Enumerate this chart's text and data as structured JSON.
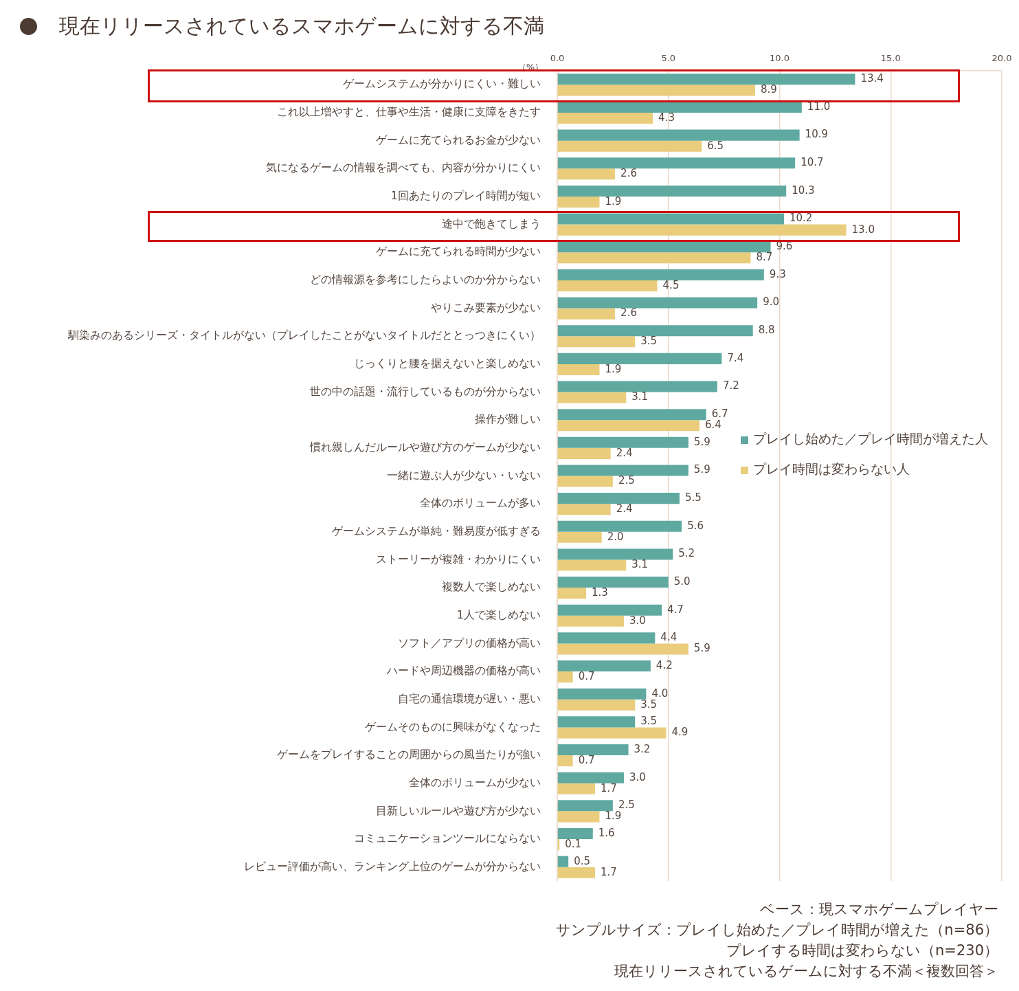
{
  "chart_data": {
    "type": "bar",
    "orientation": "horizontal",
    "title": "現在リリースされているスマホゲームに対する不満",
    "xlabel": "（%）",
    "categories": [
      "ゲームシステムが分かりにくい・難しい",
      "これ以上増やすと、仕事や生活・健康に支障をきたす",
      "ゲームに充てられるお金が少ない",
      "気になるゲームの情報を調べても、内容が分かりにくい",
      "1回あたりのプレイ時間が短い",
      "途中で飽きてしまう",
      "ゲームに充てられる時間が少ない",
      "どの情報源を参考にしたらよいのか分からない",
      "やりこみ要素が少ない",
      "馴染みのあるシリーズ・タイトルがない（プレイしたことがないタイトルだととっつきにくい）",
      "じっくりと腰を据えないと楽しめない",
      "世の中の話題・流行しているものが分からない",
      "操作が難しい",
      "慣れ親しんだルールや遊び方のゲームが少ない",
      "一緒に遊ぶ人が少ない・いない",
      "全体のボリュームが多い",
      "ゲームシステムが単純・難易度が低すぎる",
      "ストーリーが複雑・わかりにくい",
      "複数人で楽しめない",
      "1人で楽しめない",
      "ソフト／アプリの価格が高い",
      "ハードや周辺機器の価格が高い",
      "自宅の通信環境が遅い・悪い",
      "ゲームそのものに興味がなくなった",
      "ゲームをプレイすることの周囲からの風当たりが強い",
      "全体のボリュームが少ない",
      "目新しいルールや遊び方が少ない",
      "コミュニケーションツールにならない",
      "レビュー評価が高い、ランキング上位のゲームが分からない"
    ],
    "series": [
      {
        "name": "プレイし始めた／プレイ時間が増えた人",
        "color": "#5fa9a0",
        "values": [
          13.4,
          11.0,
          10.9,
          10.7,
          10.3,
          10.2,
          9.6,
          9.3,
          9.0,
          8.8,
          7.4,
          7.2,
          6.7,
          5.9,
          5.9,
          5.5,
          5.6,
          5.2,
          5.0,
          4.7,
          4.4,
          4.2,
          4.0,
          3.5,
          3.2,
          3.0,
          2.5,
          1.6,
          0.5
        ],
        "value_labels": [
          "13.4",
          "11.0",
          "10.9",
          "10.7",
          "10.3",
          "10.2",
          "9.6",
          "9.3",
          "9.0",
          "8.8",
          "7.4",
          "7.2",
          "6.7",
          "5.9",
          "5.9",
          "5.5",
          "5.6",
          "5.2",
          "5.0",
          "4.7",
          "4.4",
          "4.2",
          "4.0",
          "3.5",
          "3.2",
          "3.0",
          "2.5",
          "1.6",
          "0.5"
        ]
      },
      {
        "name": "プレイ時間は変わらない人",
        "color": "#e9cd7c",
        "values": [
          8.9,
          4.3,
          6.5,
          2.6,
          1.9,
          13.0,
          8.7,
          4.5,
          2.6,
          3.5,
          1.9,
          3.1,
          6.4,
          2.4,
          2.5,
          2.4,
          2.0,
          3.1,
          1.3,
          3.0,
          5.9,
          0.7,
          3.5,
          4.9,
          0.7,
          1.7,
          1.9,
          0.1,
          1.7
        ],
        "value_labels": [
          "8.9",
          "4.3",
          "6.5",
          "2.6",
          "1.9",
          "13.0",
          "8.7",
          "4.5",
          "2.6",
          "3.5",
          "1.9",
          "3.1",
          "6.4",
          "2.4",
          "2.5",
          "2.4",
          "2.0",
          "3.1",
          "1.3",
          "3.0",
          "5.9",
          "0.7",
          "3.5",
          "4.9",
          "0.7",
          "1.7",
          "1.9",
          "0.1",
          "1.7"
        ]
      }
    ],
    "xlim": [
      0,
      20
    ],
    "xticks": [
      {
        "value": 0,
        "label": "0.0"
      },
      {
        "value": 5,
        "label": "5.0"
      },
      {
        "value": 10,
        "label": "10.0"
      },
      {
        "value": 15,
        "label": "15.0"
      },
      {
        "value": 20,
        "label": "20.0"
      }
    ],
    "grid": "x",
    "legend": "right",
    "annotations": [
      "ベース：現スマホゲームプレイヤー",
      "サンプルサイズ：プレイし始めた／プレイ時間が増えた（n=86）",
      "プレイする時間は変わらない（n=230）",
      "現在リリースされているゲームに対する不満＜複数回答＞"
    ]
  }
}
